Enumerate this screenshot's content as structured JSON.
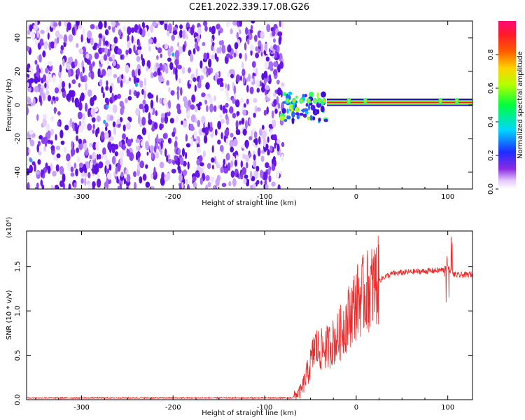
{
  "chart_data": [
    {
      "type": "heatmap",
      "title": "C2E1.2022.339.17.08.G26",
      "xlabel": "Height of straight line (km)",
      "ylabel": "Frequency (Hz)",
      "xlim": [
        -360,
        127
      ],
      "ylim": [
        -50,
        50
      ],
      "xticks": [
        "-300",
        "-200",
        "-100",
        "0",
        "100"
      ],
      "yticks": [
        "-40",
        "-20",
        "0",
        "20",
        "40"
      ],
      "colorbar": {
        "label": "Normalized spectral amplitude",
        "range": [
          0.0,
          1.0
        ],
        "ticks": [
          "0.0",
          "0.2",
          "0.4",
          "0.6",
          "0.8"
        ]
      },
      "features": [
        {
          "label": "diffuse noise",
          "x_range": [
            -360,
            -80
          ],
          "y_range": [
            -50,
            50
          ]
        },
        {
          "label": "carrier line",
          "x_range": [
            -80,
            127
          ],
          "frequency_hz": 1.5
        }
      ]
    },
    {
      "type": "line",
      "xlabel": "Height of straight line (km)",
      "ylabel": "SNR (10 * v/v)",
      "scale_label": "(x10⁴)",
      "xlim": [
        -360,
        127
      ],
      "ylim": [
        0,
        1.9
      ],
      "xticks": [
        "-300",
        "-200",
        "-100",
        "0",
        "100"
      ],
      "yticks": [
        "0.0",
        "0.5",
        "1.0",
        "1.5"
      ],
      "series": [
        {
          "color": "#ee2a2a",
          "x": [
            -360,
            -300,
            -200,
            -100,
            -70,
            -60,
            -50,
            -45,
            -40,
            -30,
            -20,
            -10,
            0,
            10,
            20,
            30,
            40,
            60,
            80,
            95,
            100,
            105,
            110,
            127
          ],
          "y": [
            0.02,
            0.02,
            0.02,
            0.02,
            0.02,
            0.1,
            0.4,
            0.6,
            0.55,
            0.6,
            0.7,
            0.9,
            1.1,
            1.2,
            1.3,
            1.38,
            1.42,
            1.44,
            1.45,
            1.46,
            1.5,
            1.42,
            1.4,
            1.41
          ]
        }
      ]
    }
  ],
  "colors": {
    "line": "#ee2a2a",
    "noise": "#6a18e8",
    "frame": "#000000"
  }
}
